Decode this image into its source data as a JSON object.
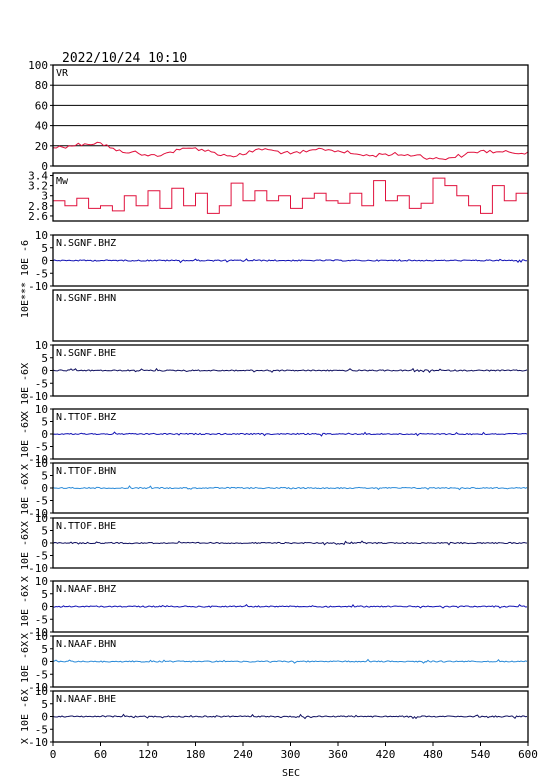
{
  "header": {
    "timestamp": "2022/10/24 10:10"
  },
  "x_axis_label": "SEC",
  "colors": {
    "red": "#e0103c",
    "blue": "#1212b4",
    "lightblue": "#2a8ad8",
    "navy": "#101060"
  },
  "chart_data": {
    "type": "line",
    "xlim": [
      0,
      600
    ],
    "xticks": [
      "0",
      "60",
      "120",
      "180",
      "240",
      "300",
      "360",
      "420",
      "480",
      "540",
      "600"
    ],
    "xlabel": "SEC",
    "panels": [
      {
        "name": "VR",
        "ylim": [
          0,
          100
        ],
        "yticks": [
          "100",
          "80",
          "60",
          "40",
          "20",
          "0"
        ],
        "color": "red",
        "grid": true,
        "x": [
          0,
          20,
          40,
          60,
          80,
          100,
          120,
          140,
          160,
          180,
          200,
          220,
          240,
          260,
          280,
          300,
          320,
          340,
          360,
          380,
          400,
          420,
          440,
          460,
          480,
          500,
          520,
          540,
          560,
          580,
          600
        ],
        "values": [
          18,
          20,
          22,
          23,
          15,
          14,
          10,
          12,
          16,
          18,
          14,
          10,
          11,
          17,
          15,
          12,
          14,
          17,
          15,
          12,
          10,
          12,
          11,
          11,
          7,
          8,
          11,
          15,
          14,
          13,
          14
        ]
      },
      {
        "name": "Mw",
        "ylim": [
          2.5,
          3.45
        ],
        "yticks": [
          "3.4",
          "3.2",
          "3",
          "2.8",
          "2.6"
        ],
        "color": "red",
        "grid": false,
        "x": [
          0,
          15,
          30,
          45,
          60,
          75,
          90,
          105,
          120,
          135,
          150,
          165,
          180,
          195,
          210,
          225,
          240,
          255,
          270,
          285,
          300,
          315,
          330,
          345,
          360,
          375,
          390,
          405,
          420,
          435,
          450,
          465,
          480,
          495,
          510,
          525,
          540,
          555,
          570,
          585,
          600
        ],
        "values": [
          2.9,
          2.8,
          2.95,
          2.75,
          2.8,
          2.7,
          3.0,
          2.8,
          3.1,
          2.75,
          3.15,
          2.8,
          3.05,
          2.65,
          2.8,
          3.25,
          2.9,
          3.1,
          2.9,
          3.0,
          2.75,
          2.95,
          3.05,
          2.9,
          2.85,
          3.05,
          2.8,
          3.3,
          2.9,
          3.0,
          2.75,
          2.85,
          3.35,
          3.2,
          3.0,
          2.8,
          2.65,
          3.2,
          2.9,
          3.05,
          3.0
        ]
      },
      {
        "name": "N.SGNF.BHZ",
        "ylim": [
          -10,
          10
        ],
        "yticks": [
          "10",
          "5",
          "0",
          "-5",
          "-10"
        ],
        "color": "blue"
      },
      {
        "name": "N.SGNF.BHN",
        "ylim": [
          -10,
          10
        ],
        "yticks": [],
        "color": "blue"
      },
      {
        "name": "N.SGNF.BHE",
        "ylim": [
          -10,
          10
        ],
        "yticks": [
          "10",
          "5",
          "0",
          "-5",
          "-10"
        ],
        "color": "navy"
      },
      {
        "name": "N.TTOF.BHZ",
        "ylim": [
          -10,
          10
        ],
        "yticks": [
          "10",
          "5",
          "0",
          "-5",
          "-10"
        ],
        "color": "blue"
      },
      {
        "name": "N.TTOF.BHN",
        "ylim": [
          -10,
          10
        ],
        "yticks": [
          "10",
          "5",
          "0",
          "-5",
          "-10"
        ],
        "color": "lightblue"
      },
      {
        "name": "N.TTOF.BHE",
        "ylim": [
          -10,
          10
        ],
        "yticks": [
          "10",
          "5",
          "0",
          "-5",
          "-10"
        ],
        "color": "navy"
      },
      {
        "name": "N.NAAF.BHZ",
        "ylim": [
          -10,
          10
        ],
        "yticks": [
          "10",
          "5",
          "0",
          "-5",
          "-10"
        ],
        "color": "blue"
      },
      {
        "name": "N.NAAF.BHN",
        "ylim": [
          -10,
          10
        ],
        "yticks": [
          "10",
          "5",
          "0",
          "-5",
          "-10"
        ],
        "color": "lightblue"
      },
      {
        "name": "N.NAAF.BHE",
        "ylim": [
          -10,
          10
        ],
        "yticks": [
          "10",
          "5",
          "0",
          "-5",
          "-10"
        ],
        "color": "navy"
      }
    ],
    "ylabels": [
      "10E -6",
      "10E***",
      "X 10E -6X",
      "X 10E -6X",
      "X 10E -6X",
      "X 10E -6X",
      "X 10E -6X",
      "X 10E -6X",
      "X 10E -6"
    ]
  }
}
